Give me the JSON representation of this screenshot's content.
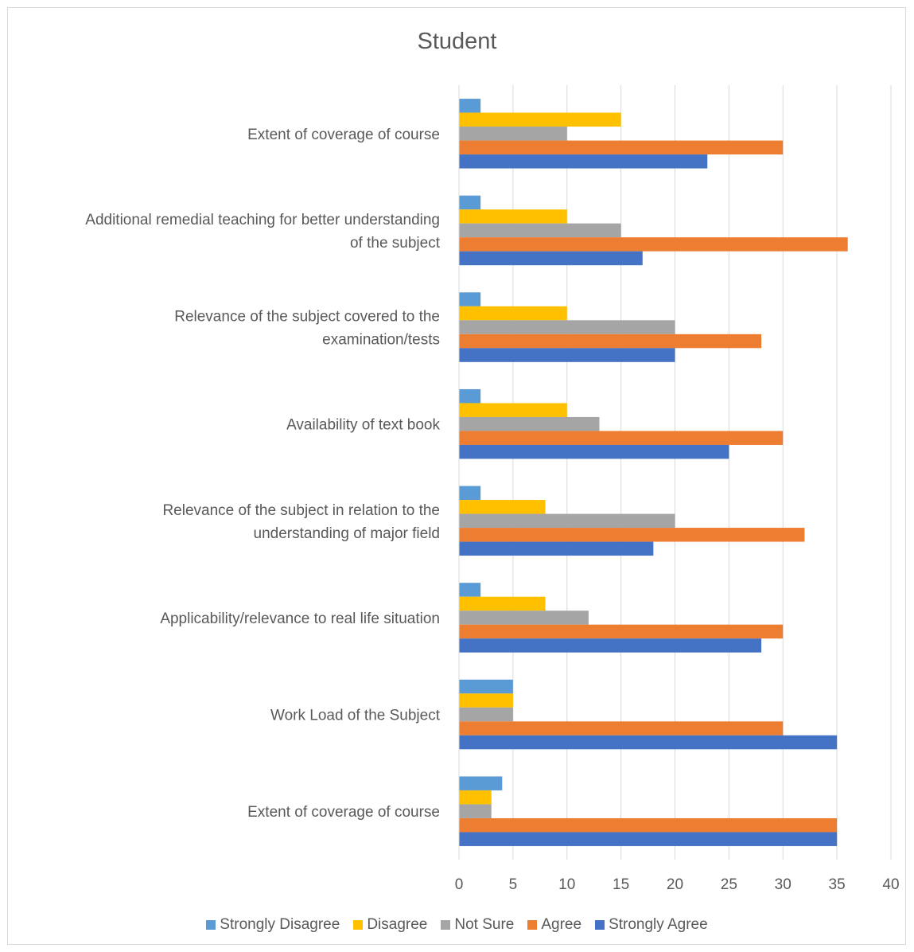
{
  "chart_data": {
    "type": "bar",
    "orientation": "horizontal",
    "title": "Student",
    "xlabel": "",
    "ylabel": "",
    "xlim": [
      0,
      40
    ],
    "x_ticks": [
      "0",
      "5",
      "10",
      "15",
      "20",
      "25",
      "30",
      "35",
      "40"
    ],
    "grid": true,
    "legend_position": "bottom",
    "categories": [
      [
        "Extent of coverage of course"
      ],
      [
        "Additional remedial teaching for better understanding",
        "of the subject"
      ],
      [
        "Relevance of the subject covered to the",
        "examination/tests"
      ],
      [
        "Availability of text book"
      ],
      [
        "Relevance of the subject in relation to the",
        "understanding of major field"
      ],
      [
        "Applicability/relevance to real life situation"
      ],
      [
        "Work Load of the Subject"
      ],
      [
        "Extent of coverage of course"
      ]
    ],
    "series": [
      {
        "name": "Strongly Disagree",
        "color": "#5b9bd5",
        "values": [
          2,
          2,
          2,
          2,
          2,
          2,
          5,
          4
        ]
      },
      {
        "name": "Disagree",
        "color": "#ffc000",
        "values": [
          15,
          10,
          10,
          10,
          8,
          8,
          5,
          3
        ]
      },
      {
        "name": "Not Sure",
        "color": "#a5a5a5",
        "values": [
          10,
          15,
          20,
          13,
          20,
          12,
          5,
          3
        ]
      },
      {
        "name": "Agree",
        "color": "#ed7d31",
        "values": [
          30,
          36,
          28,
          30,
          32,
          30,
          30,
          35
        ]
      },
      {
        "name": "Strongly Agree",
        "color": "#4472c4",
        "values": [
          23,
          17,
          20,
          25,
          18,
          28,
          35,
          35
        ]
      }
    ]
  }
}
